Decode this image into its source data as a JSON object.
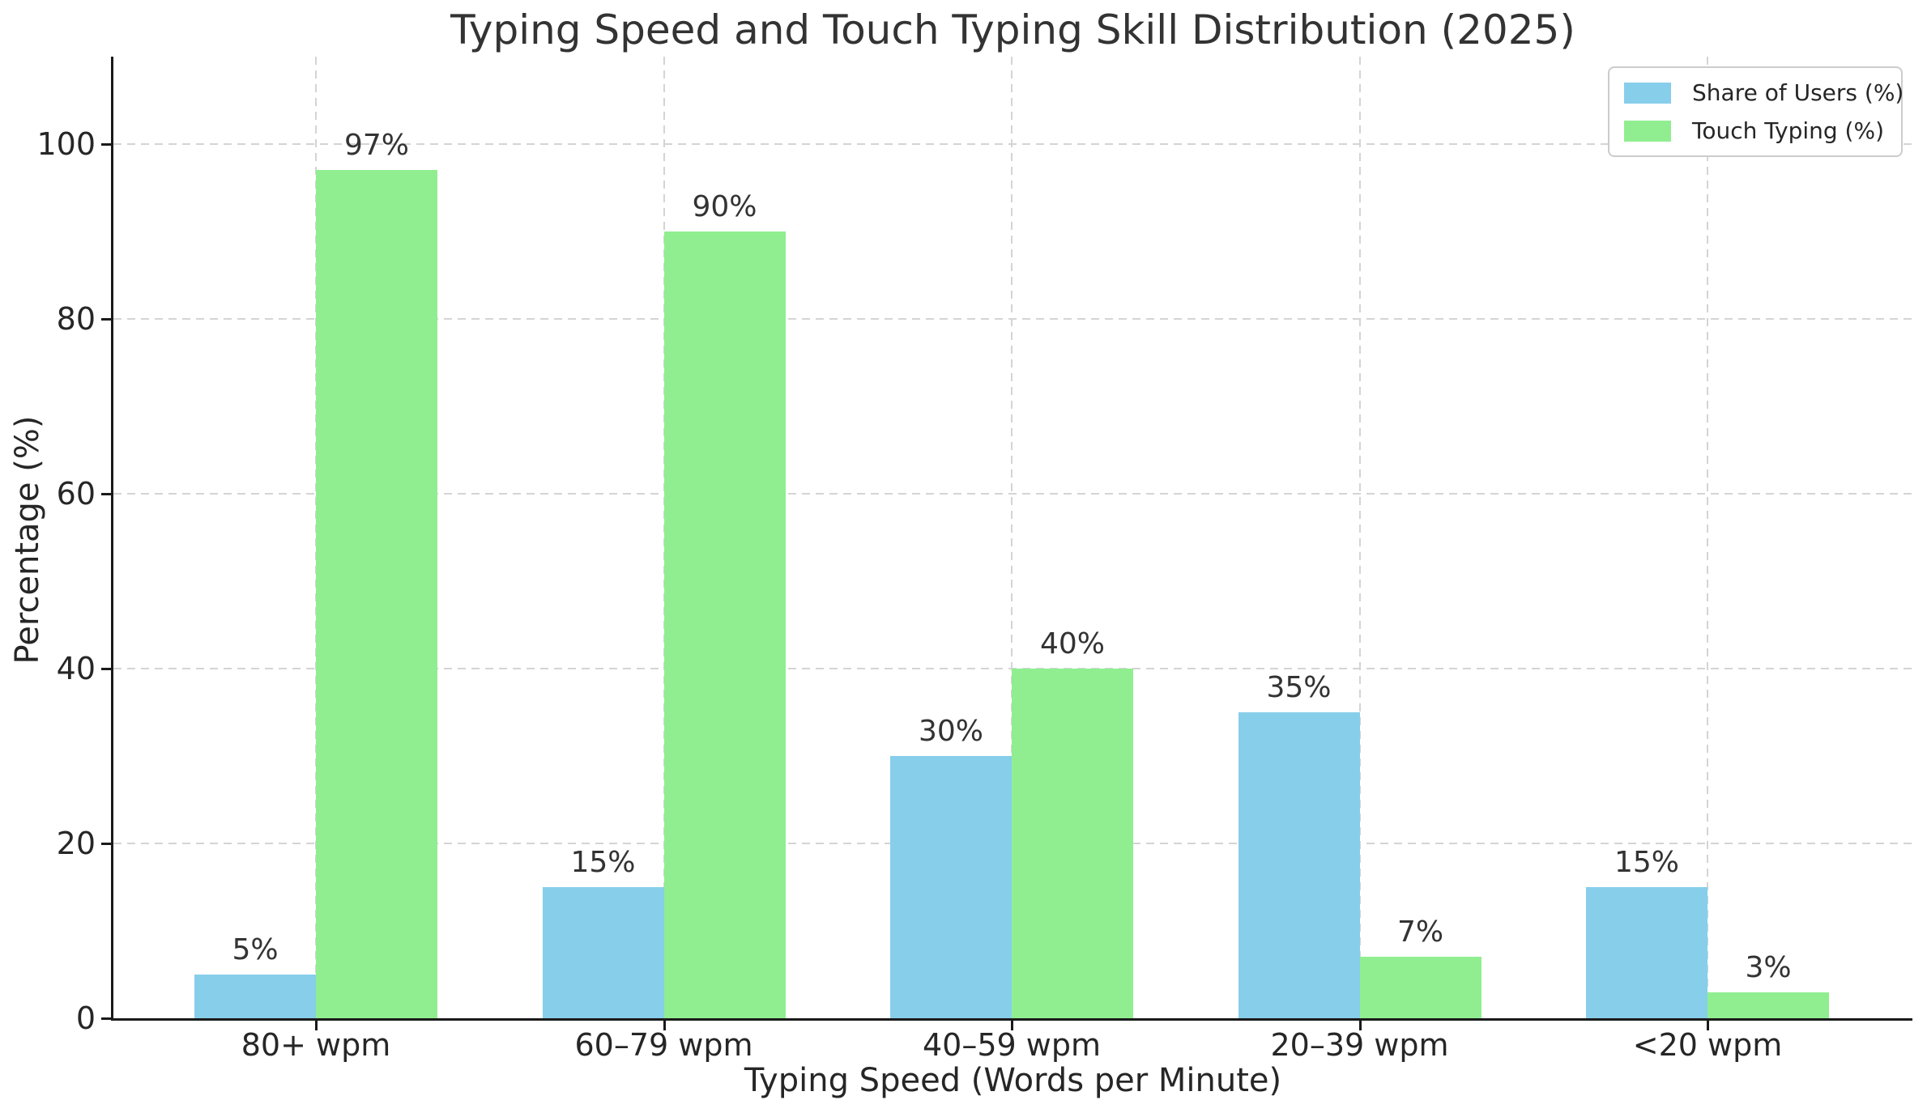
{
  "chart_data": {
    "type": "bar",
    "title": "Typing Speed and Touch Typing Skill Distribution (2025)",
    "xlabel": "Typing Speed (Words per Minute)",
    "ylabel": "Percentage (%)",
    "categories": [
      "80+ wpm",
      "60–79 wpm",
      "40–59 wpm",
      "20–39 wpm",
      "<20 wpm"
    ],
    "series": [
      {
        "name": "Share of Users (%)",
        "color": "#87CEEB",
        "values": [
          5,
          15,
          30,
          35,
          15
        ],
        "labels": [
          "5%",
          "15%",
          "30%",
          "35%",
          "15%"
        ]
      },
      {
        "name": "Touch Typing (%)",
        "color": "#90EE90",
        "values": [
          97,
          90,
          40,
          7,
          3
        ],
        "labels": [
          "97%",
          "90%",
          "40%",
          "7%",
          "3%"
        ]
      }
    ],
    "ylim": [
      0,
      110
    ],
    "yticks": [
      0,
      20,
      40,
      60,
      80,
      100
    ],
    "grid": "dashed, both axes, light gray",
    "legend_position": "upper right",
    "spine_color": "#1a1a1a",
    "text_color": "#333333"
  }
}
